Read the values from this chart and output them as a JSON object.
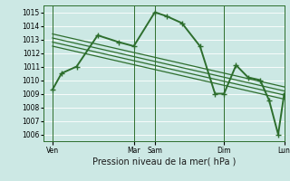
{
  "bg_color": "#cce8e4",
  "grid_color": "#ffffff",
  "line_color": "#2d6e2d",
  "title": "Pression niveau de la mer( hPa )",
  "ylim": [
    1005.5,
    1015.5
  ],
  "yticks": [
    1006,
    1007,
    1008,
    1009,
    1010,
    1011,
    1012,
    1013,
    1014,
    1015
  ],
  "xlim": [
    0,
    8.0
  ],
  "xtick_positions": [
    0.3,
    3.0,
    3.7,
    6.0,
    8.0
  ],
  "xtick_labels": [
    "Ven",
    "Mar",
    "Sam",
    "Dim",
    "Lun"
  ],
  "vline_positions": [
    0.3,
    3.0,
    3.7,
    6.0,
    8.0
  ],
  "series_main": {
    "x": [
      0.3,
      0.6,
      1.1,
      1.8,
      2.5,
      3.0,
      3.7,
      4.1,
      4.6,
      5.2,
      5.7,
      6.0,
      6.4,
      6.8,
      7.2,
      7.5,
      7.8,
      8.0
    ],
    "y": [
      1009.3,
      1010.5,
      1011.0,
      1013.3,
      1012.8,
      1012.5,
      1015.0,
      1014.7,
      1014.2,
      1012.5,
      1009.0,
      1009.0,
      1011.1,
      1010.2,
      1010.0,
      1008.5,
      1006.0,
      1009.0
    ],
    "lw": 1.4
  },
  "trend_lines": [
    {
      "x": [
        0.3,
        8.0
      ],
      "y": [
        1013.4,
        1009.5
      ]
    },
    {
      "x": [
        0.3,
        8.0
      ],
      "y": [
        1013.1,
        1009.2
      ]
    },
    {
      "x": [
        0.3,
        8.0
      ],
      "y": [
        1012.8,
        1008.9
      ]
    },
    {
      "x": [
        0.3,
        8.0
      ],
      "y": [
        1012.5,
        1008.6
      ]
    }
  ],
  "fontsize_tick": 5.5,
  "fontsize_xlabel": 7
}
